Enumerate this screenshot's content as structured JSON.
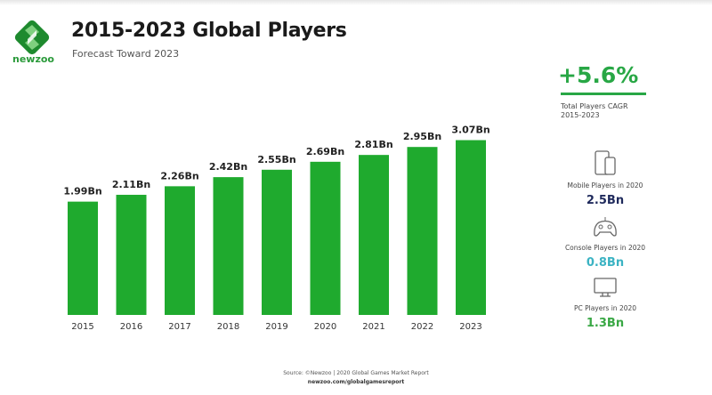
{
  "header": {
    "title": "2015-2023 Global Players",
    "subtitle": "Forecast Toward 2023",
    "logo_text": "newzoo"
  },
  "chart_data": {
    "type": "bar",
    "title": "2015-2023 Global Players",
    "subtitle": "Forecast Toward 2023",
    "categories": [
      "2015",
      "2016",
      "2017",
      "2018",
      "2019",
      "2020",
      "2021",
      "2022",
      "2023"
    ],
    "values": [
      1.99,
      2.11,
      2.26,
      2.42,
      2.55,
      2.69,
      2.81,
      2.95,
      3.07
    ],
    "data_labels": [
      "1.99Bn",
      "2.11Bn",
      "2.26Bn",
      "2.42Bn",
      "2.55Bn",
      "2.69Bn",
      "2.81Bn",
      "2.95Bn",
      "3.07Bn"
    ],
    "unit": "Bn",
    "ylim": [
      0,
      3.5
    ],
    "grid": false,
    "bar_color": "#1faa2e"
  },
  "sidebar": {
    "cagr": {
      "value": "+5.6%",
      "label_line1": "Total Players CAGR",
      "label_line2": "2015-2023",
      "color": "#28a745"
    },
    "stats": [
      {
        "icon": "mobile-devices-icon",
        "label": "Mobile Players in 2020",
        "value": "2.5Bn",
        "color": "#1f2a5c"
      },
      {
        "icon": "gamepad-icon",
        "label": "Console Players in 2020",
        "value": "0.8Bn",
        "color": "#3bb3c3"
      },
      {
        "icon": "monitor-icon",
        "label": "PC Players in 2020",
        "value": "1.3Bn",
        "color": "#3aa845"
      }
    ]
  },
  "footer": {
    "source": "Source: ©Newzoo | 2020 Global Games Market Report",
    "url": "newzoo.com/globalgamesreport"
  }
}
